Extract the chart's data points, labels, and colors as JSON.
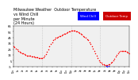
{
  "title": "Milwaukee Weather  Outdoor Temperature\nvs Wind Chill\nper Minute\n(24 Hours)",
  "title_fontsize": 3.5,
  "background_color": "#ffffff",
  "plot_bg_color": "#f0f0f0",
  "grid_color": "#aaaaaa",
  "ylim": [
    -5,
    65
  ],
  "xlim": [
    0,
    1440
  ],
  "yticks": [
    -5,
    5,
    15,
    25,
    35,
    45,
    55,
    65
  ],
  "ytick_labels": [
    "-5",
    "5",
    "15",
    "25",
    "35",
    "45",
    "55",
    "65"
  ],
  "ytick_fontsize": 2.8,
  "xtick_fontsize": 2.0,
  "xticks": [
    0,
    60,
    120,
    180,
    240,
    300,
    360,
    420,
    480,
    540,
    600,
    660,
    720,
    780,
    840,
    900,
    960,
    1020,
    1080,
    1140,
    1200,
    1260,
    1320,
    1380,
    1440
  ],
  "xtick_labels": [
    "12a",
    "1a",
    "2a",
    "3a",
    "4a",
    "5a",
    "6a",
    "7a",
    "8a",
    "9a",
    "10a",
    "11a",
    "12p",
    "1p",
    "2p",
    "3p",
    "4p",
    "5p",
    "6p",
    "7p",
    "8p",
    "9p",
    "10p",
    "11p",
    "12a"
  ],
  "legend_blue_label": "Wind Chill",
  "legend_red_label": "Outdoor Temp",
  "legend_fontsize": 2.8,
  "dot_size": 1.2,
  "temp_color": "#ff0000",
  "wind_color": "#0000ff",
  "vgrid_minutes": [
    360,
    720,
    1080
  ],
  "temp_minutes": [
    0,
    15,
    30,
    45,
    60,
    75,
    90,
    105,
    120,
    135,
    150,
    165,
    180,
    195,
    210,
    225,
    240,
    255,
    270,
    285,
    300,
    315,
    330,
    345,
    360,
    375,
    390,
    405,
    420,
    435,
    450,
    465,
    480,
    495,
    510,
    525,
    540,
    555,
    570,
    585,
    600,
    615,
    630,
    645,
    660,
    675,
    690,
    705,
    720,
    735,
    750,
    765,
    780,
    795,
    810,
    825,
    840,
    855,
    870,
    885,
    900,
    915,
    930,
    945,
    960,
    975,
    990,
    1005,
    1020,
    1035,
    1050,
    1065,
    1080,
    1095,
    1110,
    1125,
    1140,
    1155,
    1170,
    1185,
    1200,
    1215,
    1230,
    1245,
    1260,
    1275,
    1290,
    1305,
    1320,
    1335,
    1350,
    1365,
    1380,
    1395,
    1410,
    1425,
    1440
  ],
  "temp_values": [
    30,
    28,
    26,
    24,
    22,
    20,
    19,
    18,
    17,
    16,
    15,
    14,
    14,
    13,
    13,
    12,
    12,
    12,
    11,
    11,
    11,
    10,
    10,
    10,
    10,
    11,
    13,
    16,
    20,
    25,
    30,
    34,
    37,
    40,
    42,
    44,
    45,
    46,
    47,
    48,
    49,
    50,
    51,
    52,
    53,
    54,
    55,
    56,
    57,
    57,
    57,
    57,
    56,
    55,
    54,
    53,
    52,
    50,
    48,
    46,
    44,
    42,
    40,
    37,
    34,
    30,
    26,
    22,
    18,
    14,
    10,
    6,
    3,
    1,
    -1,
    -2,
    -3,
    -3,
    -3,
    -2,
    -1,
    1,
    3,
    5,
    8,
    12,
    15,
    18,
    20,
    21,
    22,
    22,
    22,
    21,
    20,
    19,
    18
  ],
  "wind_chill_minutes": [
    1155,
    1170,
    1185
  ],
  "wind_chill_values": [
    -4,
    -5,
    -4
  ]
}
